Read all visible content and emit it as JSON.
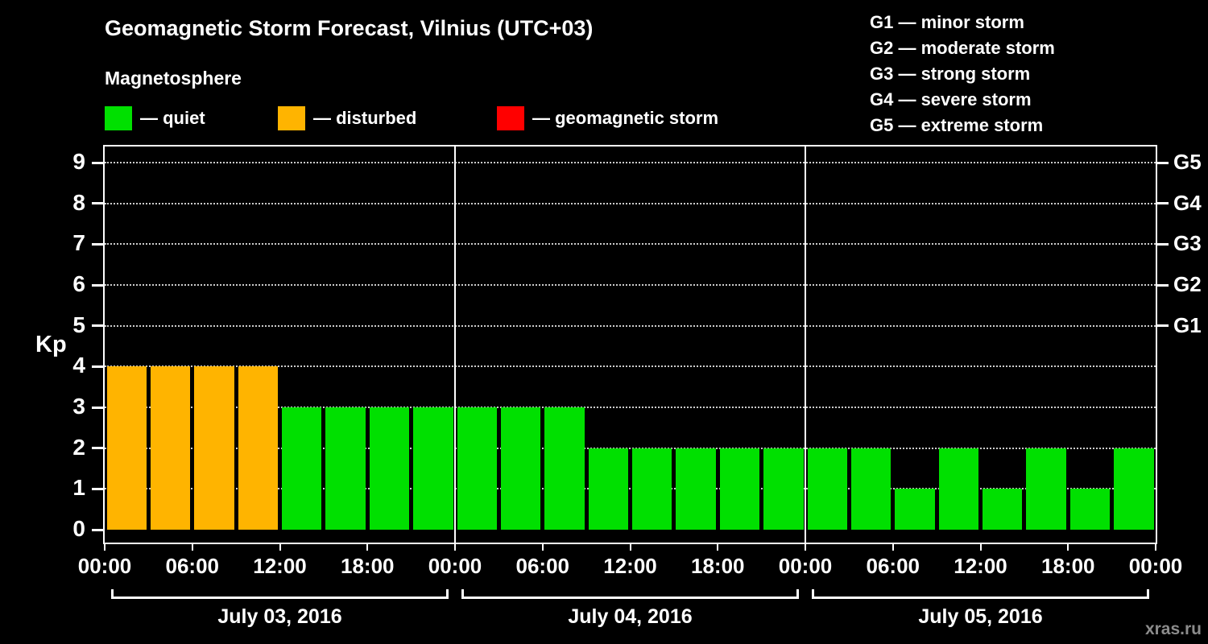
{
  "title": "Geomagnetic Storm Forecast, Vilnius (UTC+03)",
  "subtitle": "Magnetosphere",
  "legend": [
    {
      "name": "quiet",
      "label": "— quiet",
      "color": "#00e000"
    },
    {
      "name": "disturbed",
      "label": "— disturbed",
      "color": "#ffb400"
    },
    {
      "name": "storm",
      "label": "— geomagnetic storm",
      "color": "#ff0000"
    }
  ],
  "g_scale_legend": [
    {
      "label": "G1 — minor storm"
    },
    {
      "label": "G2 — moderate storm"
    },
    {
      "label": "G3 — strong storm"
    },
    {
      "label": "G4 — severe storm"
    },
    {
      "label": "G5 — extreme storm"
    }
  ],
  "watermark": "xras.ru",
  "chart_data": {
    "type": "bar",
    "title": "Geomagnetic Storm Forecast, Vilnius (UTC+03)",
    "subtitle": "Magnetosphere",
    "ylabel": "Kp",
    "ylim": [
      0,
      9
    ],
    "yticks": [
      0,
      1,
      2,
      3,
      4,
      5,
      6,
      7,
      8,
      9
    ],
    "right_axis_ticks": [
      {
        "label": "G1",
        "value": 5
      },
      {
        "label": "G2",
        "value": 6
      },
      {
        "label": "G3",
        "value": 7
      },
      {
        "label": "G4",
        "value": 8
      },
      {
        "label": "G5",
        "value": 9
      }
    ],
    "x_tick_labels": [
      "00:00",
      "06:00",
      "12:00",
      "18:00",
      "00:00",
      "06:00",
      "12:00",
      "18:00",
      "00:00",
      "06:00",
      "12:00",
      "18:00",
      "00:00"
    ],
    "interval_hours": 3,
    "grid": "dotted-horizontal",
    "days": [
      {
        "label": "July 03, 2016",
        "values": [
          4,
          4,
          4,
          4,
          3,
          3,
          3,
          3
        ]
      },
      {
        "label": "July 04, 2016",
        "values": [
          3,
          3,
          3,
          2,
          2,
          2,
          2,
          2
        ]
      },
      {
        "label": "July 05, 2016",
        "values": [
          2,
          2,
          1,
          2,
          1,
          2,
          1,
          2
        ]
      }
    ],
    "color_rules": {
      "quiet": "#00e000",
      "disturbed": "#ffb400",
      "storm": "#ff0000",
      "disturbed_min_kp": 4,
      "storm_min_kp": 5
    }
  }
}
